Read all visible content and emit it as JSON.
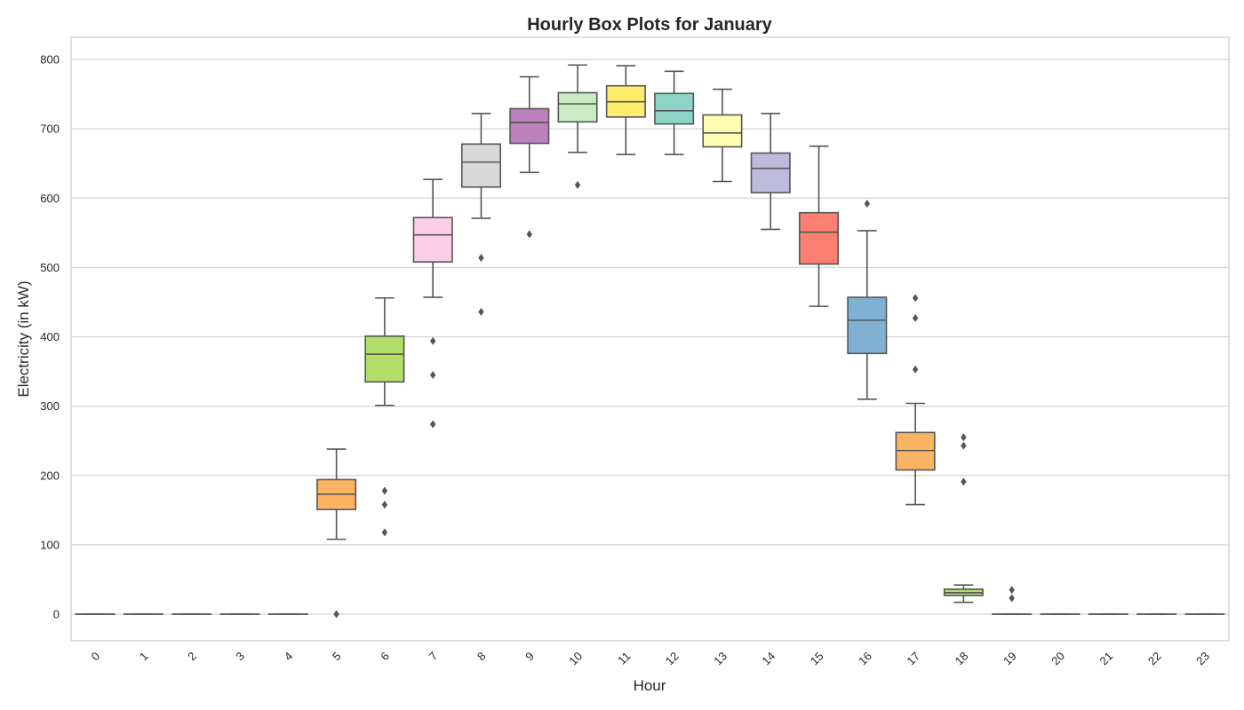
{
  "chart_data": {
    "type": "box",
    "title": "Hourly Box Plots for January",
    "xlabel": "Hour",
    "ylabel": "Electricity (in kW)",
    "ylim": [
      -40,
      830
    ],
    "yticks": [
      0,
      100,
      200,
      300,
      400,
      500,
      600,
      700,
      800
    ],
    "grid": "horizontal",
    "categories": [
      "0",
      "1",
      "2",
      "3",
      "4",
      "5",
      "6",
      "7",
      "8",
      "9",
      "10",
      "11",
      "12",
      "13",
      "14",
      "15",
      "16",
      "17",
      "18",
      "19",
      "20",
      "21",
      "22",
      "23"
    ],
    "boxes": [
      {
        "hour": "0",
        "whisker_low": 0,
        "q1": 0,
        "median": 0,
        "q3": 0,
        "whisker_high": 0,
        "outliers": [],
        "color": "#8dd3c7"
      },
      {
        "hour": "1",
        "whisker_low": 0,
        "q1": 0,
        "median": 0,
        "q3": 0,
        "whisker_high": 0,
        "outliers": [],
        "color": "#ffffb3"
      },
      {
        "hour": "2",
        "whisker_low": 0,
        "q1": 0,
        "median": 0,
        "q3": 0,
        "whisker_high": 0,
        "outliers": [],
        "color": "#bebada"
      },
      {
        "hour": "3",
        "whisker_low": 0,
        "q1": 0,
        "median": 0,
        "q3": 0,
        "whisker_high": 0,
        "outliers": [],
        "color": "#fb8072"
      },
      {
        "hour": "4",
        "whisker_low": 0,
        "q1": 0,
        "median": 0,
        "q3": 0,
        "whisker_high": 0,
        "outliers": [],
        "color": "#80b1d3"
      },
      {
        "hour": "5",
        "whisker_low": 108,
        "q1": 151,
        "median": 173,
        "q3": 194,
        "whisker_high": 238,
        "outliers": [
          0
        ],
        "color": "#fdb462"
      },
      {
        "hour": "6",
        "whisker_low": 301,
        "q1": 335,
        "median": 375,
        "q3": 401,
        "whisker_high": 456,
        "outliers": [
          178,
          158,
          118
        ],
        "color": "#b3de69"
      },
      {
        "hour": "7",
        "whisker_low": 457,
        "q1": 508,
        "median": 547,
        "q3": 572,
        "whisker_high": 627,
        "outliers": [
          394,
          345,
          274
        ],
        "color": "#fccde5"
      },
      {
        "hour": "8",
        "whisker_low": 571,
        "q1": 616,
        "median": 652,
        "q3": 678,
        "whisker_high": 722,
        "outliers": [
          514,
          436
        ],
        "color": "#d9d9d9"
      },
      {
        "hour": "9",
        "whisker_low": 637,
        "q1": 679,
        "median": 709,
        "q3": 729,
        "whisker_high": 775,
        "outliers": [
          548
        ],
        "color": "#bc80bd"
      },
      {
        "hour": "10",
        "whisker_low": 666,
        "q1": 710,
        "median": 736,
        "q3": 752,
        "whisker_high": 792,
        "outliers": [
          619
        ],
        "color": "#ccebc5"
      },
      {
        "hour": "11",
        "whisker_low": 663,
        "q1": 717,
        "median": 739,
        "q3": 762,
        "whisker_high": 791,
        "outliers": [],
        "color": "#ffed6f"
      },
      {
        "hour": "12",
        "whisker_low": 663,
        "q1": 707,
        "median": 726,
        "q3": 751,
        "whisker_high": 783,
        "outliers": [],
        "color": "#8dd3c7"
      },
      {
        "hour": "13",
        "whisker_low": 624,
        "q1": 674,
        "median": 694,
        "q3": 720,
        "whisker_high": 757,
        "outliers": [],
        "color": "#ffffb3"
      },
      {
        "hour": "14",
        "whisker_low": 555,
        "q1": 608,
        "median": 643,
        "q3": 665,
        "whisker_high": 722,
        "outliers": [],
        "color": "#bebada"
      },
      {
        "hour": "15",
        "whisker_low": 444,
        "q1": 505,
        "median": 551,
        "q3": 579,
        "whisker_high": 675,
        "outliers": [],
        "color": "#fb8072"
      },
      {
        "hour": "16",
        "whisker_low": 310,
        "q1": 376,
        "median": 424,
        "q3": 457,
        "whisker_high": 553,
        "outliers": [
          592
        ],
        "color": "#80b1d3"
      },
      {
        "hour": "17",
        "whisker_low": 158,
        "q1": 208,
        "median": 236,
        "q3": 262,
        "whisker_high": 304,
        "outliers": [
          456,
          427,
          353
        ],
        "color": "#fdb462"
      },
      {
        "hour": "18",
        "whisker_low": 17,
        "q1": 27,
        "median": 31,
        "q3": 36,
        "whisker_high": 42,
        "outliers": [
          255,
          243,
          191
        ],
        "color": "#b3de69"
      },
      {
        "hour": "19",
        "whisker_low": 0,
        "q1": 0,
        "median": 0,
        "q3": 0,
        "whisker_high": 0,
        "outliers": [
          35,
          23
        ],
        "color": "#fccde5"
      },
      {
        "hour": "20",
        "whisker_low": 0,
        "q1": 0,
        "median": 0,
        "q3": 0,
        "whisker_high": 0,
        "outliers": [],
        "color": "#d9d9d9"
      },
      {
        "hour": "21",
        "whisker_low": 0,
        "q1": 0,
        "median": 0,
        "q3": 0,
        "whisker_high": 0,
        "outliers": [],
        "color": "#bc80bd"
      },
      {
        "hour": "22",
        "whisker_low": 0,
        "q1": 0,
        "median": 0,
        "q3": 0,
        "whisker_high": 0,
        "outliers": [],
        "color": "#ccebc5"
      },
      {
        "hour": "23",
        "whisker_low": 0,
        "q1": 0,
        "median": 0,
        "q3": 0,
        "whisker_high": 0,
        "outliers": [],
        "color": "#ffed6f"
      }
    ],
    "colors": {
      "line": "#555555",
      "grid": "#d4d4d4",
      "frame": "#cccccc",
      "outlier": "#555555"
    }
  }
}
